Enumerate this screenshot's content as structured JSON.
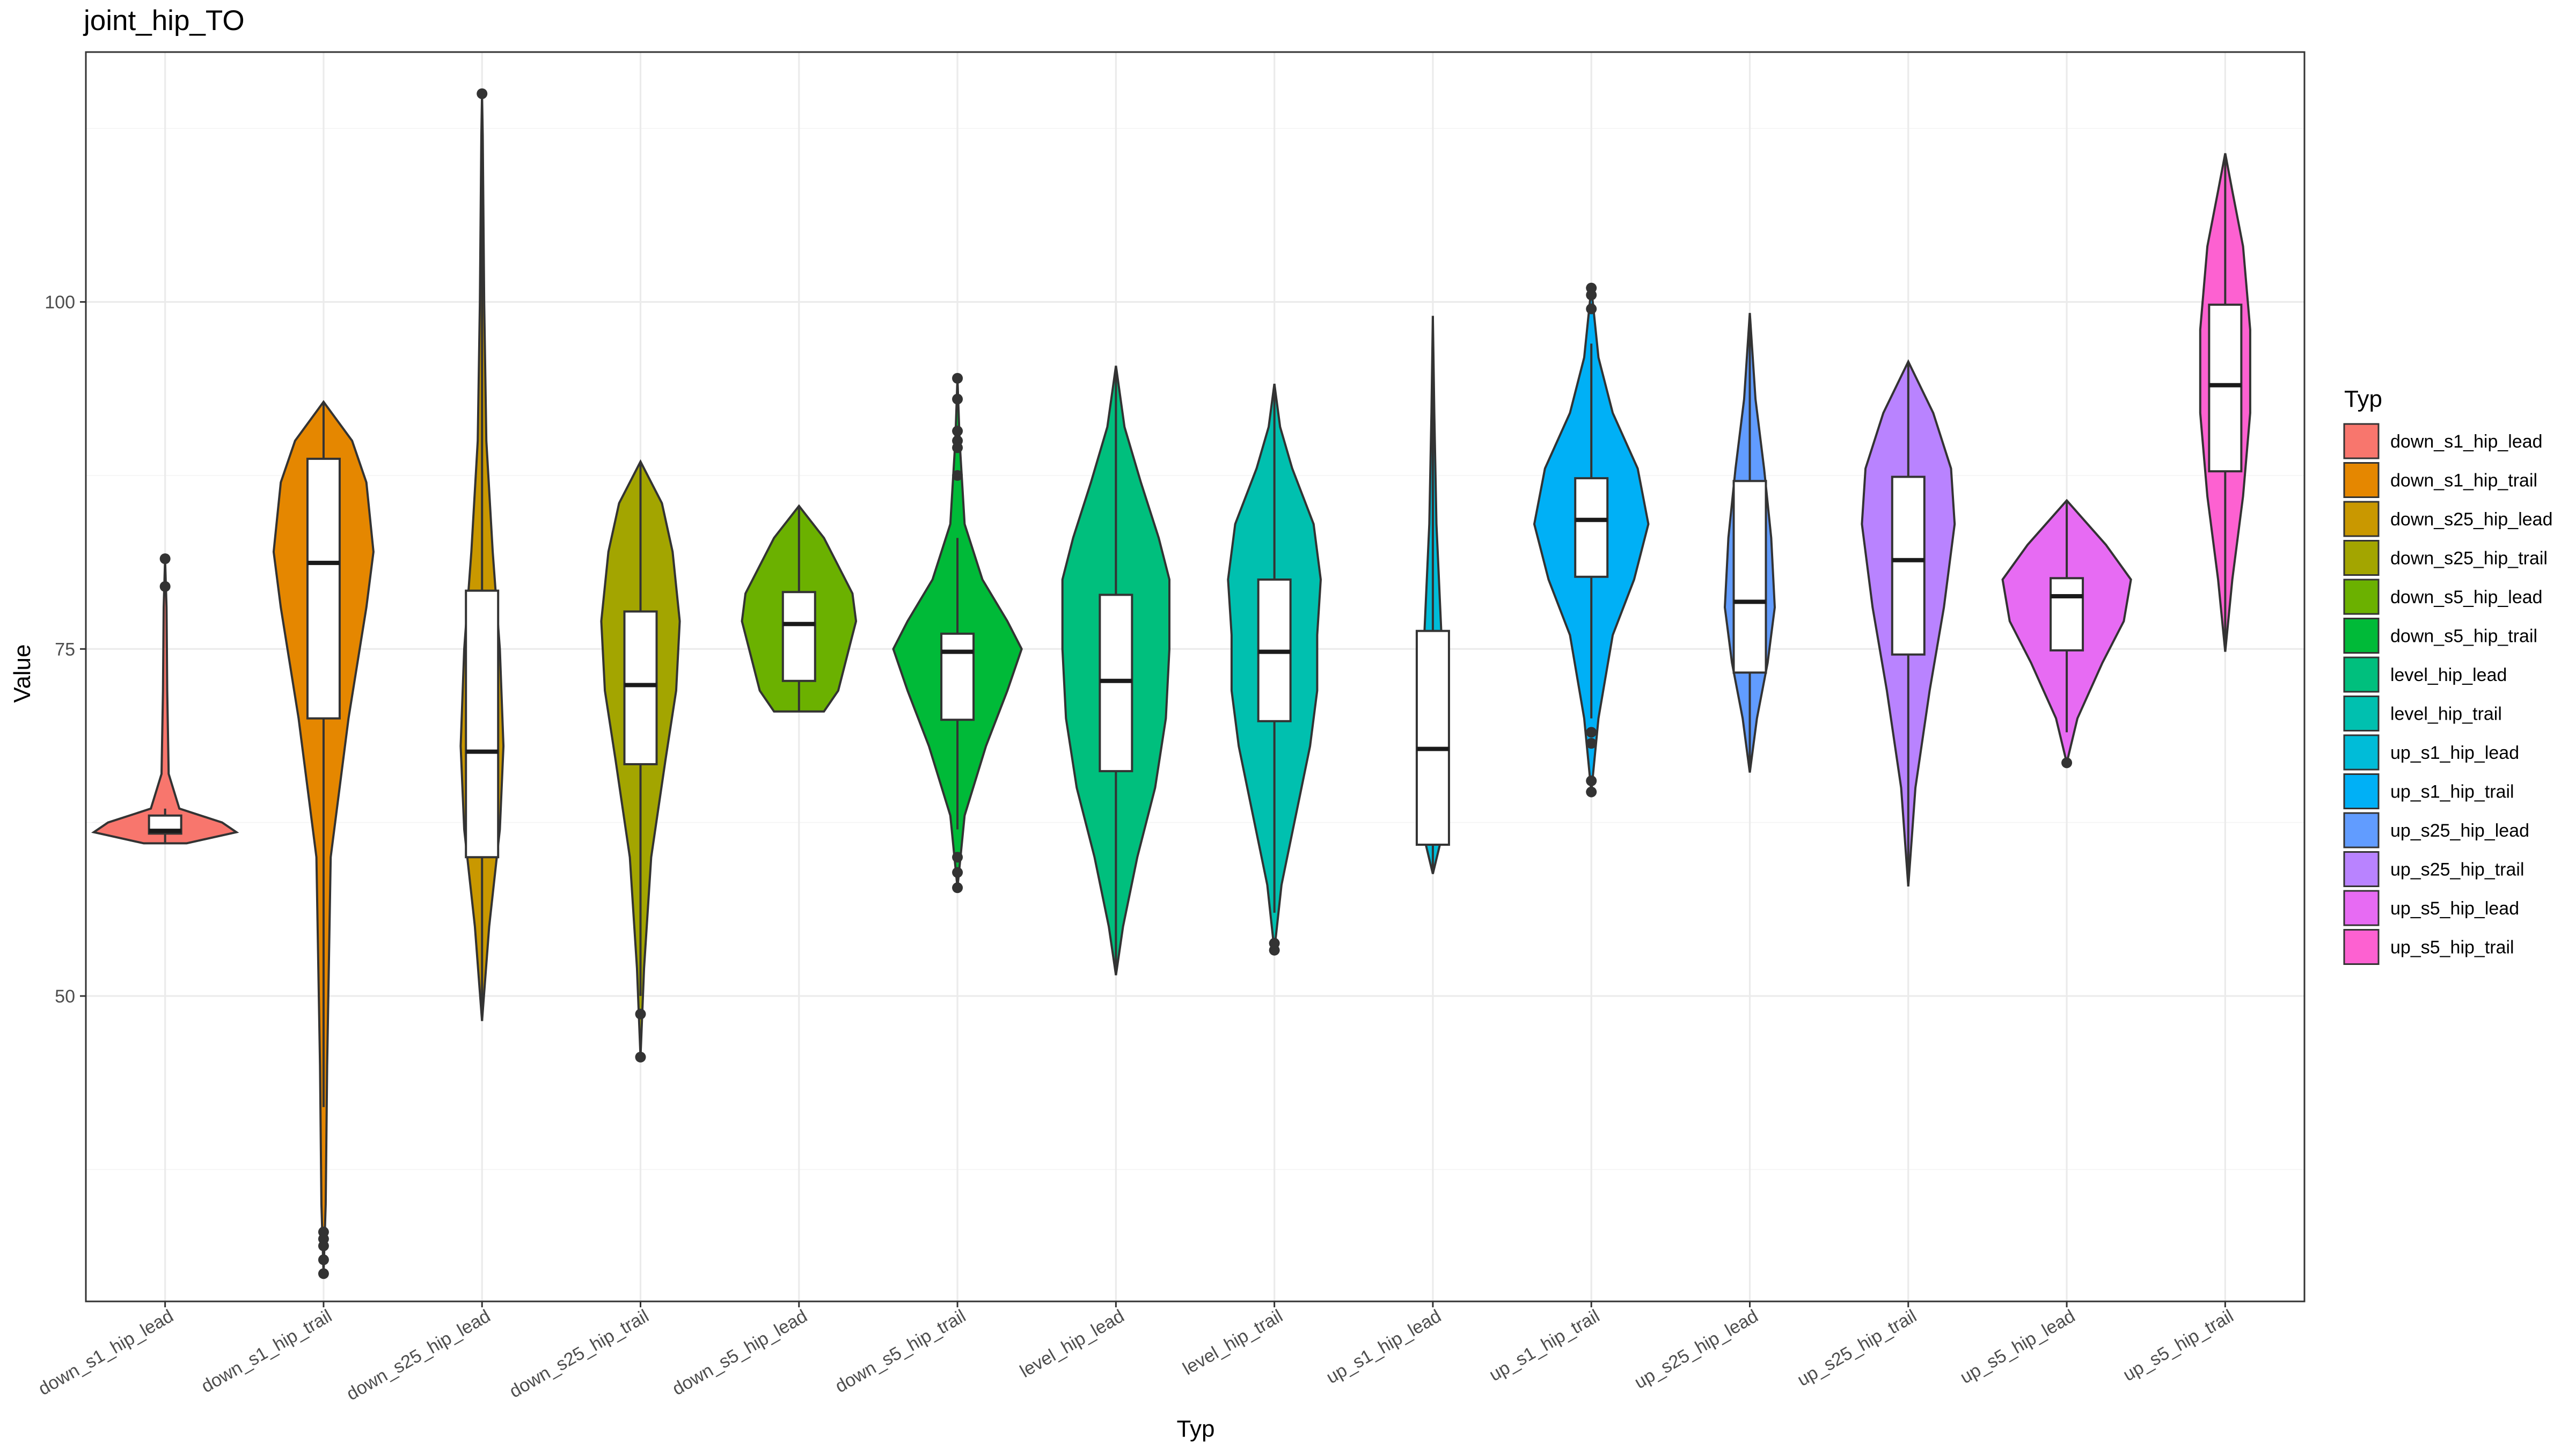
{
  "chart_data": {
    "type": "violin",
    "title": "joint_hip_TO",
    "xlabel": "Typ",
    "ylabel": "Value",
    "ylim": [
      28,
      118
    ],
    "yticks": [
      50,
      75,
      100
    ],
    "yticks_minor": [
      37.5,
      62.5,
      87.5,
      112.5
    ],
    "grid": true,
    "legend": {
      "title": "Typ",
      "position": "right"
    },
    "categories": [
      "down_s1_hip_lead",
      "down_s1_hip_trail",
      "down_s25_hip_lead",
      "down_s25_hip_trail",
      "down_s5_hip_lead",
      "down_s5_hip_trail",
      "level_hip_lead",
      "level_hip_trail",
      "up_s1_hip_lead",
      "up_s1_hip_trail",
      "up_s25_hip_lead",
      "up_s25_hip_trail",
      "up_s5_hip_lead",
      "up_s5_hip_trail"
    ],
    "colors": [
      "#F8766D",
      "#E58700",
      "#C99800",
      "#A3A500",
      "#6BB100",
      "#00BA38",
      "#00BF7D",
      "#00C0AF",
      "#00BCD8",
      "#00B0F6",
      "#619CFF",
      "#B983FF",
      "#E76BF3",
      "#FD61D1"
    ],
    "series": [
      {
        "name": "down_s1_hip_lead",
        "min": 61,
        "max": 81.5,
        "q1": 61.7,
        "median": 61.9,
        "q3": 63,
        "whisker_low": 61,
        "whisker_high": 63.5,
        "outliers": [
          79.5,
          81.5
        ],
        "violin": [
          [
            61,
            0.3
          ],
          [
            61.8,
            1.0
          ],
          [
            62.5,
            0.8
          ],
          [
            63.5,
            0.2
          ],
          [
            66,
            0.05
          ],
          [
            72,
            0.03
          ],
          [
            78,
            0.02
          ],
          [
            81.5,
            0.0
          ]
        ]
      },
      {
        "name": "down_s1_hip_trail",
        "min": 30,
        "max": 92.8,
        "q1": 70,
        "median": 81.2,
        "q3": 88.7,
        "whisker_low": 42,
        "whisker_high": 92.8,
        "outliers": [
          33,
          32.5,
          32,
          31,
          30
        ],
        "violin": [
          [
            30,
            0.0
          ],
          [
            35,
            0.03
          ],
          [
            45,
            0.05
          ],
          [
            60,
            0.1
          ],
          [
            70,
            0.35
          ],
          [
            78,
            0.6
          ],
          [
            82,
            0.7
          ],
          [
            87,
            0.6
          ],
          [
            90,
            0.4
          ],
          [
            92.8,
            0.0
          ]
        ]
      },
      {
        "name": "down_s25_hip_lead",
        "min": 48.2,
        "max": 115,
        "q1": 60,
        "median": 67.6,
        "q3": 79.2,
        "whisker_low": 48.2,
        "whisker_high": 112,
        "outliers": [
          115
        ],
        "violin": [
          [
            48.2,
            0.0
          ],
          [
            55,
            0.1
          ],
          [
            62,
            0.25
          ],
          [
            68,
            0.3
          ],
          [
            75,
            0.25
          ],
          [
            82,
            0.15
          ],
          [
            90,
            0.06
          ],
          [
            100,
            0.03
          ],
          [
            112,
            0.01
          ],
          [
            115,
            0.0
          ]
        ]
      },
      {
        "name": "down_s25_hip_trail",
        "min": 45.6,
        "max": 88.5,
        "q1": 66.7,
        "median": 72.4,
        "q3": 77.7,
        "whisker_low": 50,
        "whisker_high": 88.5,
        "outliers": [
          48.7,
          45.6
        ],
        "violin": [
          [
            45.6,
            0.0
          ],
          [
            52,
            0.05
          ],
          [
            60,
            0.15
          ],
          [
            67,
            0.35
          ],
          [
            72,
            0.5
          ],
          [
            77,
            0.55
          ],
          [
            82,
            0.45
          ],
          [
            85.5,
            0.3
          ],
          [
            88.5,
            0.0
          ]
        ]
      },
      {
        "name": "down_s5_hip_lead",
        "min": 70.5,
        "max": 85.3,
        "q1": 72.7,
        "median": 76.8,
        "q3": 79.1,
        "whisker_low": 70.5,
        "whisker_high": 85.3,
        "outliers": [],
        "violin": [
          [
            70.5,
            0.35
          ],
          [
            72,
            0.55
          ],
          [
            75,
            0.7
          ],
          [
            77,
            0.8
          ],
          [
            79,
            0.75
          ],
          [
            81,
            0.55
          ],
          [
            83,
            0.35
          ],
          [
            85.3,
            0.0
          ]
        ]
      },
      {
        "name": "down_s5_hip_trail",
        "min": 57.8,
        "max": 94.5,
        "q1": 69.9,
        "median": 74.8,
        "q3": 76.1,
        "whisker_low": 62,
        "whisker_high": 83,
        "outliers": [
          94.5,
          93,
          90.7,
          90,
          89.5,
          87.5,
          60,
          58.9,
          57.8
        ],
        "violin": [
          [
            57.8,
            0.0
          ],
          [
            63,
            0.1
          ],
          [
            68,
            0.4
          ],
          [
            72,
            0.7
          ],
          [
            75,
            0.9
          ],
          [
            77,
            0.7
          ],
          [
            80,
            0.35
          ],
          [
            84,
            0.1
          ],
          [
            90,
            0.03
          ],
          [
            94.5,
            0.0
          ]
        ]
      },
      {
        "name": "level_hip_lead",
        "min": 51.5,
        "max": 95.4,
        "q1": 66.2,
        "median": 72.7,
        "q3": 78.9,
        "whisker_low": 51.5,
        "whisker_high": 95.4,
        "outliers": [],
        "violin": [
          [
            51.5,
            0.0
          ],
          [
            55,
            0.1
          ],
          [
            60,
            0.3
          ],
          [
            65,
            0.55
          ],
          [
            70,
            0.7
          ],
          [
            75,
            0.75
          ],
          [
            80,
            0.75
          ],
          [
            83,
            0.6
          ],
          [
            87,
            0.35
          ],
          [
            91,
            0.12
          ],
          [
            95.4,
            0.0
          ]
        ]
      },
      {
        "name": "level_hip_trail",
        "min": 53.3,
        "max": 94.1,
        "q1": 69.8,
        "median": 74.8,
        "q3": 80,
        "whisker_low": 56,
        "whisker_high": 94.1,
        "outliers": [
          53.3,
          53.8
        ],
        "violin": [
          [
            53.3,
            0.0
          ],
          [
            58,
            0.1
          ],
          [
            63,
            0.3
          ],
          [
            68,
            0.5
          ],
          [
            72,
            0.6
          ],
          [
            76,
            0.6
          ],
          [
            80,
            0.65
          ],
          [
            84,
            0.55
          ],
          [
            88,
            0.25
          ],
          [
            91,
            0.08
          ],
          [
            94.1,
            0.0
          ]
        ]
      },
      {
        "name": "up_s1_hip_lead",
        "min": 58.8,
        "max": 99,
        "q1": 60.9,
        "median": 67.8,
        "q3": 76.3,
        "whisker_low": 58.8,
        "whisker_high": 99,
        "outliers": [],
        "violin": [
          [
            58.8,
            0.0
          ],
          [
            62,
            0.15
          ],
          [
            66,
            0.2
          ],
          [
            70,
            0.2
          ],
          [
            76,
            0.12
          ],
          [
            84,
            0.05
          ],
          [
            92,
            0.02
          ],
          [
            99,
            0.0
          ]
        ]
      },
      {
        "name": "up_s1_hip_trail",
        "min": 64.7,
        "max": 101,
        "q1": 80.2,
        "median": 84.3,
        "q3": 87.3,
        "whisker_low": 70,
        "whisker_high": 97,
        "outliers": [
          101,
          100.5,
          99.5,
          69,
          68.2,
          65.5,
          64.7
        ],
        "violin": [
          [
            64.7,
            0.0
          ],
          [
            70,
            0.1
          ],
          [
            76,
            0.3
          ],
          [
            80,
            0.6
          ],
          [
            84,
            0.8
          ],
          [
            88,
            0.65
          ],
          [
            92,
            0.3
          ],
          [
            96,
            0.1
          ],
          [
            101,
            0.0
          ]
        ]
      },
      {
        "name": "up_s25_hip_lead",
        "min": 66.1,
        "max": 99.2,
        "q1": 73.3,
        "median": 78.4,
        "q3": 87.1,
        "whisker_low": 66.1,
        "whisker_high": 99.2,
        "outliers": [],
        "violin": [
          [
            66.1,
            0.0
          ],
          [
            70,
            0.1
          ],
          [
            74,
            0.25
          ],
          [
            78,
            0.35
          ],
          [
            83,
            0.3
          ],
          [
            88,
            0.2
          ],
          [
            93,
            0.08
          ],
          [
            99.2,
            0.0
          ]
        ]
      },
      {
        "name": "up_s25_hip_trail",
        "min": 57.9,
        "max": 95.7,
        "q1": 74.6,
        "median": 81.4,
        "q3": 87.4,
        "whisker_low": 57.9,
        "whisker_high": 95.7,
        "outliers": [],
        "violin": [
          [
            57.9,
            0.0
          ],
          [
            65,
            0.1
          ],
          [
            72,
            0.3
          ],
          [
            78,
            0.5
          ],
          [
            84,
            0.65
          ],
          [
            88,
            0.6
          ],
          [
            92,
            0.35
          ],
          [
            95.7,
            0.0
          ]
        ]
      },
      {
        "name": "up_s5_hip_lead",
        "min": 66.8,
        "max": 85.7,
        "q1": 74.9,
        "median": 78.8,
        "q3": 80.1,
        "whisker_low": 69,
        "whisker_high": 85.7,
        "outliers": [
          66.8
        ],
        "violin": [
          [
            66.8,
            0.0
          ],
          [
            70,
            0.15
          ],
          [
            74,
            0.5
          ],
          [
            77,
            0.8
          ],
          [
            80,
            0.9
          ],
          [
            82.5,
            0.55
          ],
          [
            85.7,
            0.0
          ]
        ]
      },
      {
        "name": "up_s5_hip_trail",
        "min": 74.8,
        "max": 110.7,
        "q1": 87.8,
        "median": 94,
        "q3": 99.8,
        "whisker_low": 74.8,
        "whisker_high": 110.7,
        "outliers": [],
        "violin": [
          [
            74.8,
            0.0
          ],
          [
            80,
            0.1
          ],
          [
            86,
            0.25
          ],
          [
            92,
            0.35
          ],
          [
            98,
            0.35
          ],
          [
            104,
            0.25
          ],
          [
            108,
            0.1
          ],
          [
            110.7,
            0.0
          ]
        ]
      }
    ]
  }
}
